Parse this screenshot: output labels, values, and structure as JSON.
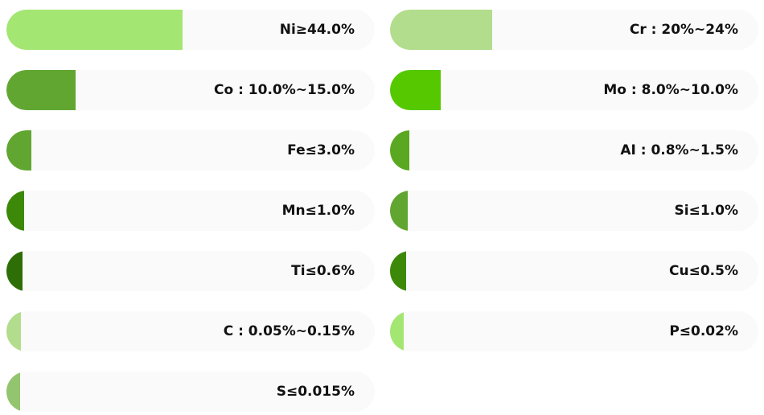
{
  "items": [
    {
      "label": "Ni≥44.0%",
      "fill": 47.8,
      "color": "#a3e672"
    },
    {
      "label": "Cr : 20%~24%",
      "fill": 27.7,
      "color": "#b2dd8c"
    },
    {
      "label": "Co : 10.0%~15.0%",
      "fill": 18.8,
      "color": "#62a632"
    },
    {
      "label": "Mo : 8.0%~10.0%",
      "fill": 13.8,
      "color": "#55c800"
    },
    {
      "label": "Fe≤3.0%",
      "fill": 6.8,
      "color": "#62a632"
    },
    {
      "label": "AI : 0.8%~1.5%",
      "fill": 5.2,
      "color": "#5aa821"
    },
    {
      "label": "Mn≤1.0%",
      "fill": 4.8,
      "color": "#3c8808"
    },
    {
      "label": "Si≤1.0%",
      "fill": 4.8,
      "color": "#62a632"
    },
    {
      "label": "Ti≤0.6%",
      "fill": 4.4,
      "color": "#2e6e06"
    },
    {
      "label": "Cu≤0.5%",
      "fill": 4.4,
      "color": "#3c8808"
    },
    {
      "label": "C : 0.05%~0.15%",
      "fill": 3.9,
      "color": "#b2dd8c"
    },
    {
      "label": "P≤0.02%",
      "fill": 3.7,
      "color": "#a3e672"
    },
    {
      "label": "S≤0.015%",
      "fill": 3.7,
      "color": "#93c56e"
    }
  ]
}
